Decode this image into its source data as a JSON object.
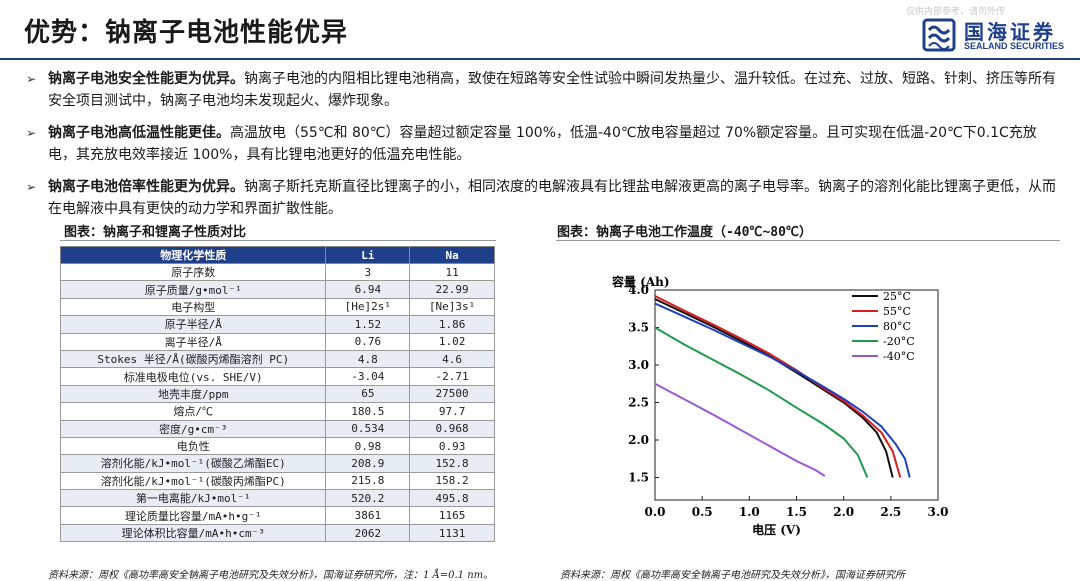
{
  "header": {
    "title": "优势：钠离子电池性能优异",
    "disclaimer": "仅供内部参考，请勿外传",
    "logo_cn": "国海证券",
    "logo_en": "SEALAND SECURITIES"
  },
  "bullets": [
    {
      "head": "钠离子电池安全性能更为优异。",
      "body": "钠离子电池的内阻相比锂电池稍高，致使在短路等安全性试验中瞬间发热量少、温升较低。在过充、过放、短路、针刺、挤压等所有安全项目测试中，钠离子电池均未发现起火、爆炸现象。"
    },
    {
      "head": "钠离子电池高低温性能更佳。",
      "body": "高温放电（55℃和 80℃）容量超过额定容量 100%，低温-40℃放电容量超过 70%额定容量。且可实现在低温-20℃下0.1C充放电，其充放电效率接近 100%，具有比锂电池更好的低温充电性能。"
    },
    {
      "head": "钠离子电池倍率性能更为优异。",
      "body": "钠离子斯托克斯直径比锂离子的小，相同浓度的电解液具有比锂盐电解液更高的离子电导率。钠离子的溶剂化能比锂离子更低，从而在电解液中具有更快的动力学和界面扩散性能。"
    }
  ],
  "table": {
    "caption": "图表：钠离子和锂离子性质对比",
    "headers": [
      "物理化学性质",
      "Li",
      "Na"
    ],
    "rows": [
      [
        "原子序数",
        "3",
        "11"
      ],
      [
        "原子质量/g•mol⁻¹",
        "6.94",
        "22.99"
      ],
      [
        "电子构型",
        "[He]2s¹",
        "[Ne]3s¹"
      ],
      [
        "原子半径/Å",
        "1.52",
        "1.86"
      ],
      [
        "离子半径/Å",
        "0.76",
        "1.02"
      ],
      [
        "Stokes 半径/Å(碳酸丙烯酯溶剂 PC)",
        "4.8",
        "4.6"
      ],
      [
        "标准电极电位(vs. SHE/V)",
        "-3.04",
        "-2.71"
      ],
      [
        "地壳丰度/ppm",
        "65",
        "27500"
      ],
      [
        "熔点/℃",
        "180.5",
        "97.7"
      ],
      [
        "密度/g•cm⁻³",
        "0.534",
        "0.968"
      ],
      [
        "电负性",
        "0.98",
        "0.93"
      ],
      [
        "溶剂化能/kJ•mol⁻¹(碳酸乙烯酯EC)",
        "208.9",
        "152.8"
      ],
      [
        "溶剂化能/kJ•mol⁻¹(碳酸丙烯酯PC)",
        "215.8",
        "158.2"
      ],
      [
        "第一电离能/kJ•mol⁻¹",
        "520.2",
        "495.8"
      ],
      [
        "理论质量比容量/mA•h•g⁻¹",
        "3861",
        "1165"
      ],
      [
        "理论体积比容量/mA•h•cm⁻³",
        "2062",
        "1131"
      ]
    ],
    "source": "资料来源：周权《高功率高安全钠离子电池研究及失效分析》，国海证券研究所，注：1 Å=0.1 nm。"
  },
  "chart_caption": "图表：钠离子电池工作温度（-40℃~80℃）",
  "chart_source": "资料来源：周权《高功率高安全钠离子电池研究及失效分析》，国海证券研究所",
  "chart_data": {
    "type": "line",
    "title": "",
    "xlabel": "电压 (V)",
    "ylabel": "容量 (Ah)",
    "xlim": [
      0.0,
      3.0
    ],
    "ylim": [
      1.2,
      4.0
    ],
    "xticks": [
      "0.0",
      "0.5",
      "1.0",
      "1.5",
      "2.0",
      "2.5",
      "3.0"
    ],
    "yticks": [
      "1.5",
      "2.0",
      "2.5",
      "3.0",
      "3.5",
      "4.0"
    ],
    "grid": false,
    "legend": "top-right",
    "series": [
      {
        "name": "25°C",
        "color": "#111111",
        "points": [
          [
            0.0,
            3.88
          ],
          [
            0.3,
            3.7
          ],
          [
            0.6,
            3.52
          ],
          [
            0.9,
            3.33
          ],
          [
            1.2,
            3.13
          ],
          [
            1.5,
            2.9
          ],
          [
            1.8,
            2.66
          ],
          [
            2.0,
            2.5
          ],
          [
            2.2,
            2.3
          ],
          [
            2.35,
            2.1
          ],
          [
            2.45,
            1.85
          ],
          [
            2.52,
            1.5
          ]
        ]
      },
      {
        "name": "55°C",
        "color": "#d81e1e",
        "points": [
          [
            0.0,
            3.92
          ],
          [
            0.3,
            3.73
          ],
          [
            0.6,
            3.55
          ],
          [
            0.9,
            3.36
          ],
          [
            1.2,
            3.16
          ],
          [
            1.5,
            2.93
          ],
          [
            1.8,
            2.68
          ],
          [
            2.0,
            2.52
          ],
          [
            2.2,
            2.33
          ],
          [
            2.4,
            2.1
          ],
          [
            2.52,
            1.85
          ],
          [
            2.6,
            1.5
          ]
        ]
      },
      {
        "name": "80°C",
        "color": "#1f3fbf",
        "points": [
          [
            0.0,
            3.82
          ],
          [
            0.3,
            3.65
          ],
          [
            0.6,
            3.48
          ],
          [
            0.9,
            3.3
          ],
          [
            1.2,
            3.12
          ],
          [
            1.5,
            2.92
          ],
          [
            1.8,
            2.7
          ],
          [
            2.0,
            2.55
          ],
          [
            2.2,
            2.38
          ],
          [
            2.4,
            2.18
          ],
          [
            2.55,
            1.95
          ],
          [
            2.65,
            1.75
          ],
          [
            2.7,
            1.5
          ]
        ]
      },
      {
        "name": "-20°C",
        "color": "#1e9a4a",
        "points": [
          [
            0.0,
            3.5
          ],
          [
            0.3,
            3.28
          ],
          [
            0.6,
            3.08
          ],
          [
            0.9,
            2.88
          ],
          [
            1.2,
            2.67
          ],
          [
            1.5,
            2.43
          ],
          [
            1.8,
            2.2
          ],
          [
            2.0,
            2.02
          ],
          [
            2.15,
            1.8
          ],
          [
            2.25,
            1.5
          ]
        ]
      },
      {
        "name": "-40°C",
        "color": "#9b59d0",
        "points": [
          [
            0.0,
            2.75
          ],
          [
            0.3,
            2.55
          ],
          [
            0.6,
            2.35
          ],
          [
            0.9,
            2.14
          ],
          [
            1.2,
            1.93
          ],
          [
            1.5,
            1.72
          ],
          [
            1.7,
            1.6
          ],
          [
            1.8,
            1.52
          ]
        ]
      }
    ]
  }
}
